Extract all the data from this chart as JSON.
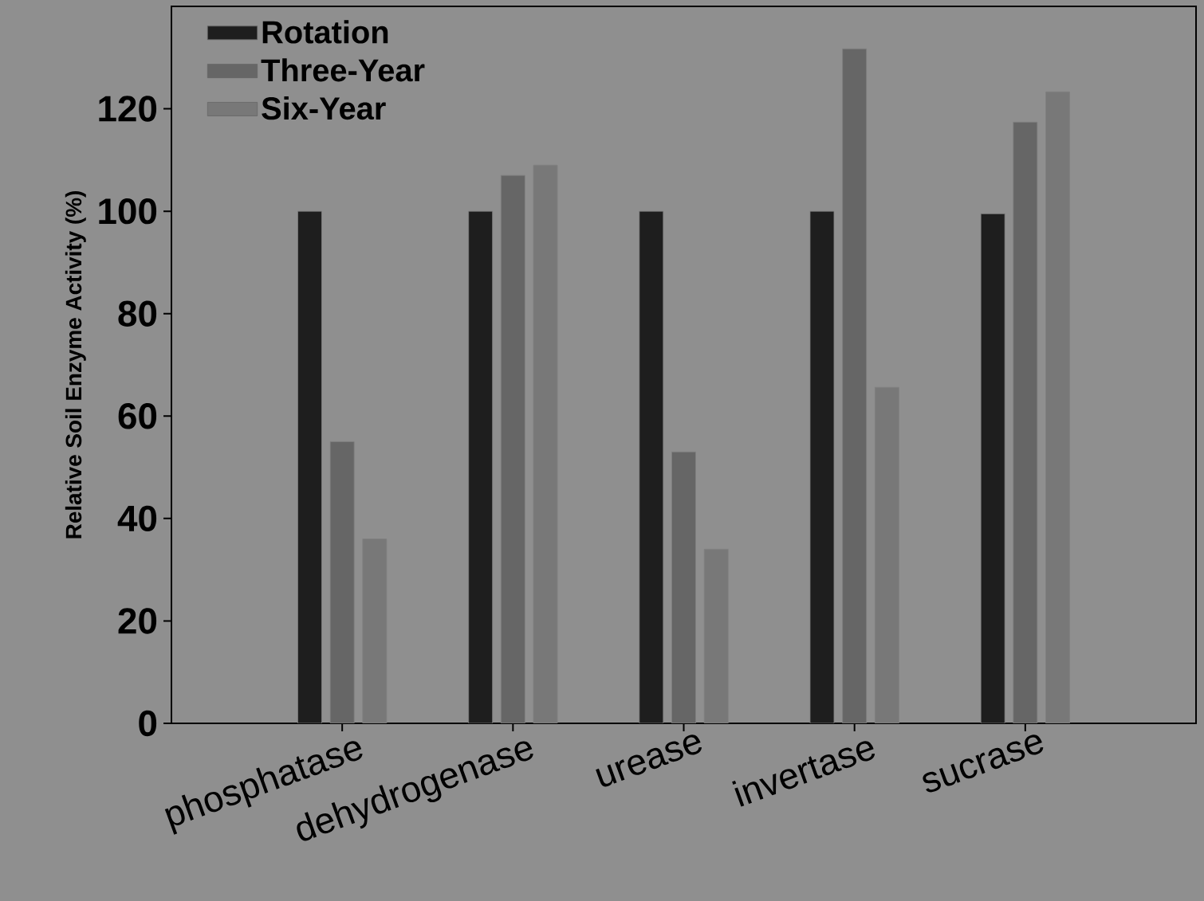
{
  "chart_data": {
    "type": "bar",
    "ylabel": "Relative Soil Enzyme Activity (%)",
    "categories": [
      "phosphatase",
      "dehydrogenase",
      "urease",
      "invertase",
      "sucrase"
    ],
    "series": [
      {
        "name": "Rotation",
        "color": "#1e1e1e",
        "values": [
          100,
          100,
          100,
          100,
          99.5
        ]
      },
      {
        "name": "Three-Year",
        "color": "#666666",
        "values": [
          55,
          107,
          53,
          131.7,
          117.4
        ]
      },
      {
        "name": "Six-Year",
        "color": "#787878",
        "values": [
          36,
          109,
          34,
          65.6,
          123.3
        ]
      }
    ],
    "ylim": [
      0,
      140
    ],
    "yticks": [
      0,
      20,
      40,
      60,
      80,
      100,
      120
    ],
    "grid": false,
    "legend": "top left"
  }
}
